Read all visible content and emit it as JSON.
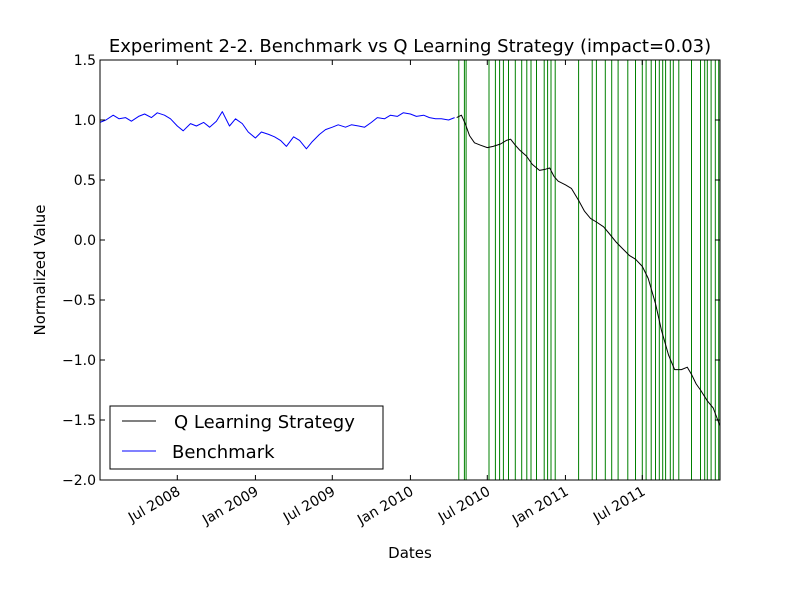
{
  "chart_data": {
    "type": "line",
    "title": "Experiment 2-2. Benchmark vs Q Learning Strategy (impact=0.03)",
    "xlabel": "Dates",
    "ylabel": "Normalized Value",
    "xlim": [
      "2008-01-01",
      "2011-12-31"
    ],
    "ylim": [
      -2.0,
      1.5
    ],
    "x_ticks": [
      {
        "date": "2008-07-01",
        "label": "Jul 2008"
      },
      {
        "date": "2009-01-01",
        "label": "Jan 2009"
      },
      {
        "date": "2009-07-01",
        "label": "Jul 2009"
      },
      {
        "date": "2010-01-01",
        "label": "Jan 2010"
      },
      {
        "date": "2010-07-01",
        "label": "Jul 2010"
      },
      {
        "date": "2011-01-01",
        "label": "Jan 2011"
      },
      {
        "date": "2011-07-01",
        "label": "Jul 2011"
      }
    ],
    "y_ticks": [
      {
        "value": 1.5,
        "label": "1.5"
      },
      {
        "value": 1.0,
        "label": "1.0"
      },
      {
        "value": 0.5,
        "label": "0.5"
      },
      {
        "value": 0.0,
        "label": "0.0"
      },
      {
        "value": -0.5,
        "label": "−0.5"
      },
      {
        "value": -1.0,
        "label": "−1.0"
      },
      {
        "value": -1.5,
        "label": "−1.5"
      },
      {
        "value": -2.0,
        "label": "−2.0"
      }
    ],
    "legend": {
      "position": "lower-left",
      "entries": [
        {
          "label": "Q Learning Strategy",
          "color": "#000000"
        },
        {
          "label": "Benchmark",
          "color": "#0000ff"
        }
      ]
    },
    "series": [
      {
        "name": "Benchmark",
        "color": "#0000ff",
        "points": [
          [
            "2008-01-01",
            0.98
          ],
          [
            "2008-01-15",
            1.0
          ],
          [
            "2008-02-01",
            1.04
          ],
          [
            "2008-02-15",
            1.01
          ],
          [
            "2008-03-01",
            1.02
          ],
          [
            "2008-03-15",
            0.99
          ],
          [
            "2008-04-01",
            1.03
          ],
          [
            "2008-04-15",
            1.05
          ],
          [
            "2008-05-01",
            1.02
          ],
          [
            "2008-05-15",
            1.06
          ],
          [
            "2008-06-01",
            1.04
          ],
          [
            "2008-06-15",
            1.01
          ],
          [
            "2008-07-01",
            0.95
          ],
          [
            "2008-07-15",
            0.91
          ],
          [
            "2008-08-01",
            0.97
          ],
          [
            "2008-08-15",
            0.95
          ],
          [
            "2008-09-01",
            0.98
          ],
          [
            "2008-09-15",
            0.94
          ],
          [
            "2008-10-01",
            0.99
          ],
          [
            "2008-10-15",
            1.07
          ],
          [
            "2008-11-01",
            0.95
          ],
          [
            "2008-11-15",
            1.01
          ],
          [
            "2008-12-01",
            0.97
          ],
          [
            "2008-12-15",
            0.9
          ],
          [
            "2009-01-01",
            0.85
          ],
          [
            "2009-01-15",
            0.9
          ],
          [
            "2009-02-01",
            0.88
          ],
          [
            "2009-02-15",
            0.86
          ],
          [
            "2009-03-01",
            0.83
          ],
          [
            "2009-03-15",
            0.78
          ],
          [
            "2009-04-01",
            0.86
          ],
          [
            "2009-04-15",
            0.83
          ],
          [
            "2009-05-01",
            0.76
          ],
          [
            "2009-05-15",
            0.82
          ],
          [
            "2009-06-01",
            0.88
          ],
          [
            "2009-06-15",
            0.92
          ],
          [
            "2009-07-01",
            0.94
          ],
          [
            "2009-07-15",
            0.96
          ],
          [
            "2009-08-01",
            0.94
          ],
          [
            "2009-08-15",
            0.96
          ],
          [
            "2009-09-01",
            0.95
          ],
          [
            "2009-09-15",
            0.94
          ],
          [
            "2009-10-01",
            0.98
          ],
          [
            "2009-10-15",
            1.02
          ],
          [
            "2009-11-01",
            1.01
          ],
          [
            "2009-11-15",
            1.04
          ],
          [
            "2009-12-01",
            1.03
          ],
          [
            "2009-12-15",
            1.06
          ],
          [
            "2010-01-01",
            1.05
          ],
          [
            "2010-01-15",
            1.03
          ],
          [
            "2010-02-01",
            1.04
          ],
          [
            "2010-02-15",
            1.02
          ],
          [
            "2010-03-01",
            1.01
          ],
          [
            "2010-03-15",
            1.01
          ],
          [
            "2010-04-01",
            1.0
          ],
          [
            "2010-04-15",
            1.02
          ]
        ]
      },
      {
        "name": "Q Learning Strategy",
        "color": "#000000",
        "points": [
          [
            "2010-04-20",
            1.02
          ],
          [
            "2010-05-01",
            1.04
          ],
          [
            "2010-05-10",
            0.97
          ],
          [
            "2010-05-20",
            0.87
          ],
          [
            "2010-06-01",
            0.81
          ],
          [
            "2010-06-15",
            0.79
          ],
          [
            "2010-07-01",
            0.77
          ],
          [
            "2010-07-15",
            0.78
          ],
          [
            "2010-08-01",
            0.8
          ],
          [
            "2010-08-15",
            0.83
          ],
          [
            "2010-08-25",
            0.84
          ],
          [
            "2010-09-05",
            0.79
          ],
          [
            "2010-09-15",
            0.75
          ],
          [
            "2010-10-01",
            0.7
          ],
          [
            "2010-10-15",
            0.63
          ],
          [
            "2010-11-01",
            0.58
          ],
          [
            "2010-11-15",
            0.59
          ],
          [
            "2010-11-25",
            0.6
          ],
          [
            "2010-12-05",
            0.53
          ],
          [
            "2010-12-15",
            0.49
          ],
          [
            "2011-01-01",
            0.46
          ],
          [
            "2011-01-15",
            0.43
          ],
          [
            "2011-02-01",
            0.33
          ],
          [
            "2011-02-15",
            0.24
          ],
          [
            "2011-03-01",
            0.18
          ],
          [
            "2011-03-15",
            0.15
          ],
          [
            "2011-04-01",
            0.11
          ],
          [
            "2011-04-15",
            0.05
          ],
          [
            "2011-05-01",
            -0.02
          ],
          [
            "2011-05-15",
            -0.07
          ],
          [
            "2011-06-01",
            -0.13
          ],
          [
            "2011-06-15",
            -0.16
          ],
          [
            "2011-07-01",
            -0.22
          ],
          [
            "2011-07-15",
            -0.32
          ],
          [
            "2011-08-01",
            -0.53
          ],
          [
            "2011-08-15",
            -0.75
          ],
          [
            "2011-09-01",
            -0.96
          ],
          [
            "2011-09-15",
            -1.08
          ],
          [
            "2011-10-01",
            -1.08
          ],
          [
            "2011-10-15",
            -1.06
          ],
          [
            "2011-10-25",
            -1.12
          ],
          [
            "2011-11-05",
            -1.2
          ],
          [
            "2011-11-15",
            -1.25
          ],
          [
            "2011-12-01",
            -1.34
          ],
          [
            "2011-12-15",
            -1.4
          ],
          [
            "2011-12-31",
            -1.55
          ]
        ]
      }
    ],
    "trade_lines": {
      "color": "#008000",
      "dates": [
        "2010-04-25",
        "2010-05-08",
        "2010-05-12",
        "2010-07-05",
        "2010-07-20",
        "2010-07-30",
        "2010-08-08",
        "2010-08-20",
        "2010-09-05",
        "2010-09-20",
        "2010-10-02",
        "2010-10-12",
        "2010-10-25",
        "2010-11-12",
        "2010-11-20",
        "2010-11-28",
        "2010-12-08",
        "2011-02-01",
        "2011-03-05",
        "2011-03-15",
        "2011-04-05",
        "2011-04-20",
        "2011-05-05",
        "2011-05-28",
        "2011-06-15",
        "2011-07-01",
        "2011-07-10",
        "2011-07-22",
        "2011-08-01",
        "2011-08-10",
        "2011-08-18",
        "2011-08-25",
        "2011-09-05",
        "2011-09-12",
        "2011-09-25",
        "2011-10-25",
        "2011-11-15",
        "2011-11-25",
        "2011-12-01",
        "2011-12-10",
        "2011-12-20",
        "2011-12-28"
      ]
    }
  }
}
